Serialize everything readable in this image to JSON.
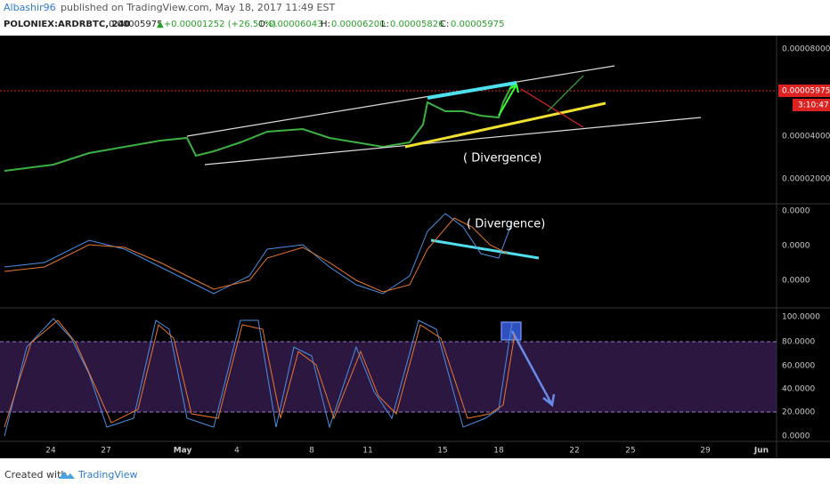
{
  "header": {
    "author": "Albashir96",
    "published": "published on TradingView.com, May 18, 2017 11:49 EST"
  },
  "legend": {
    "symbol": "POLONIEX:ARDRBTC, 240",
    "last": "0.00005975",
    "change": "▲+0.00001252 (+26.51%)",
    "open_label": "O:",
    "open": "0.00006043",
    "high_label": "H:",
    "high": "0.00006200",
    "low_label": "L:",
    "low": "0.00005826",
    "close_label": "C:",
    "close": "0.00005975"
  },
  "price_axis": [
    "0.00008000",
    "0.00004000",
    "0.00002000"
  ],
  "price_marker": "0.00005975",
  "countdown": "3:10:47",
  "macd_axis": [
    "0.0000",
    "0.0000",
    "0.0000"
  ],
  "stoch_axis": [
    "100.0000",
    "80.0000",
    "60.0000",
    "40.0000",
    "20.0000",
    "0.0000"
  ],
  "time_axis": [
    "24",
    "27",
    "May",
    "4",
    "8",
    "11",
    "15",
    "18",
    "22",
    "25",
    "29",
    "Jun"
  ],
  "annotations": [
    "( Divergence)",
    "( Divergence)"
  ],
  "footer": {
    "created": "Created with",
    "brand": "TradingView"
  }
}
